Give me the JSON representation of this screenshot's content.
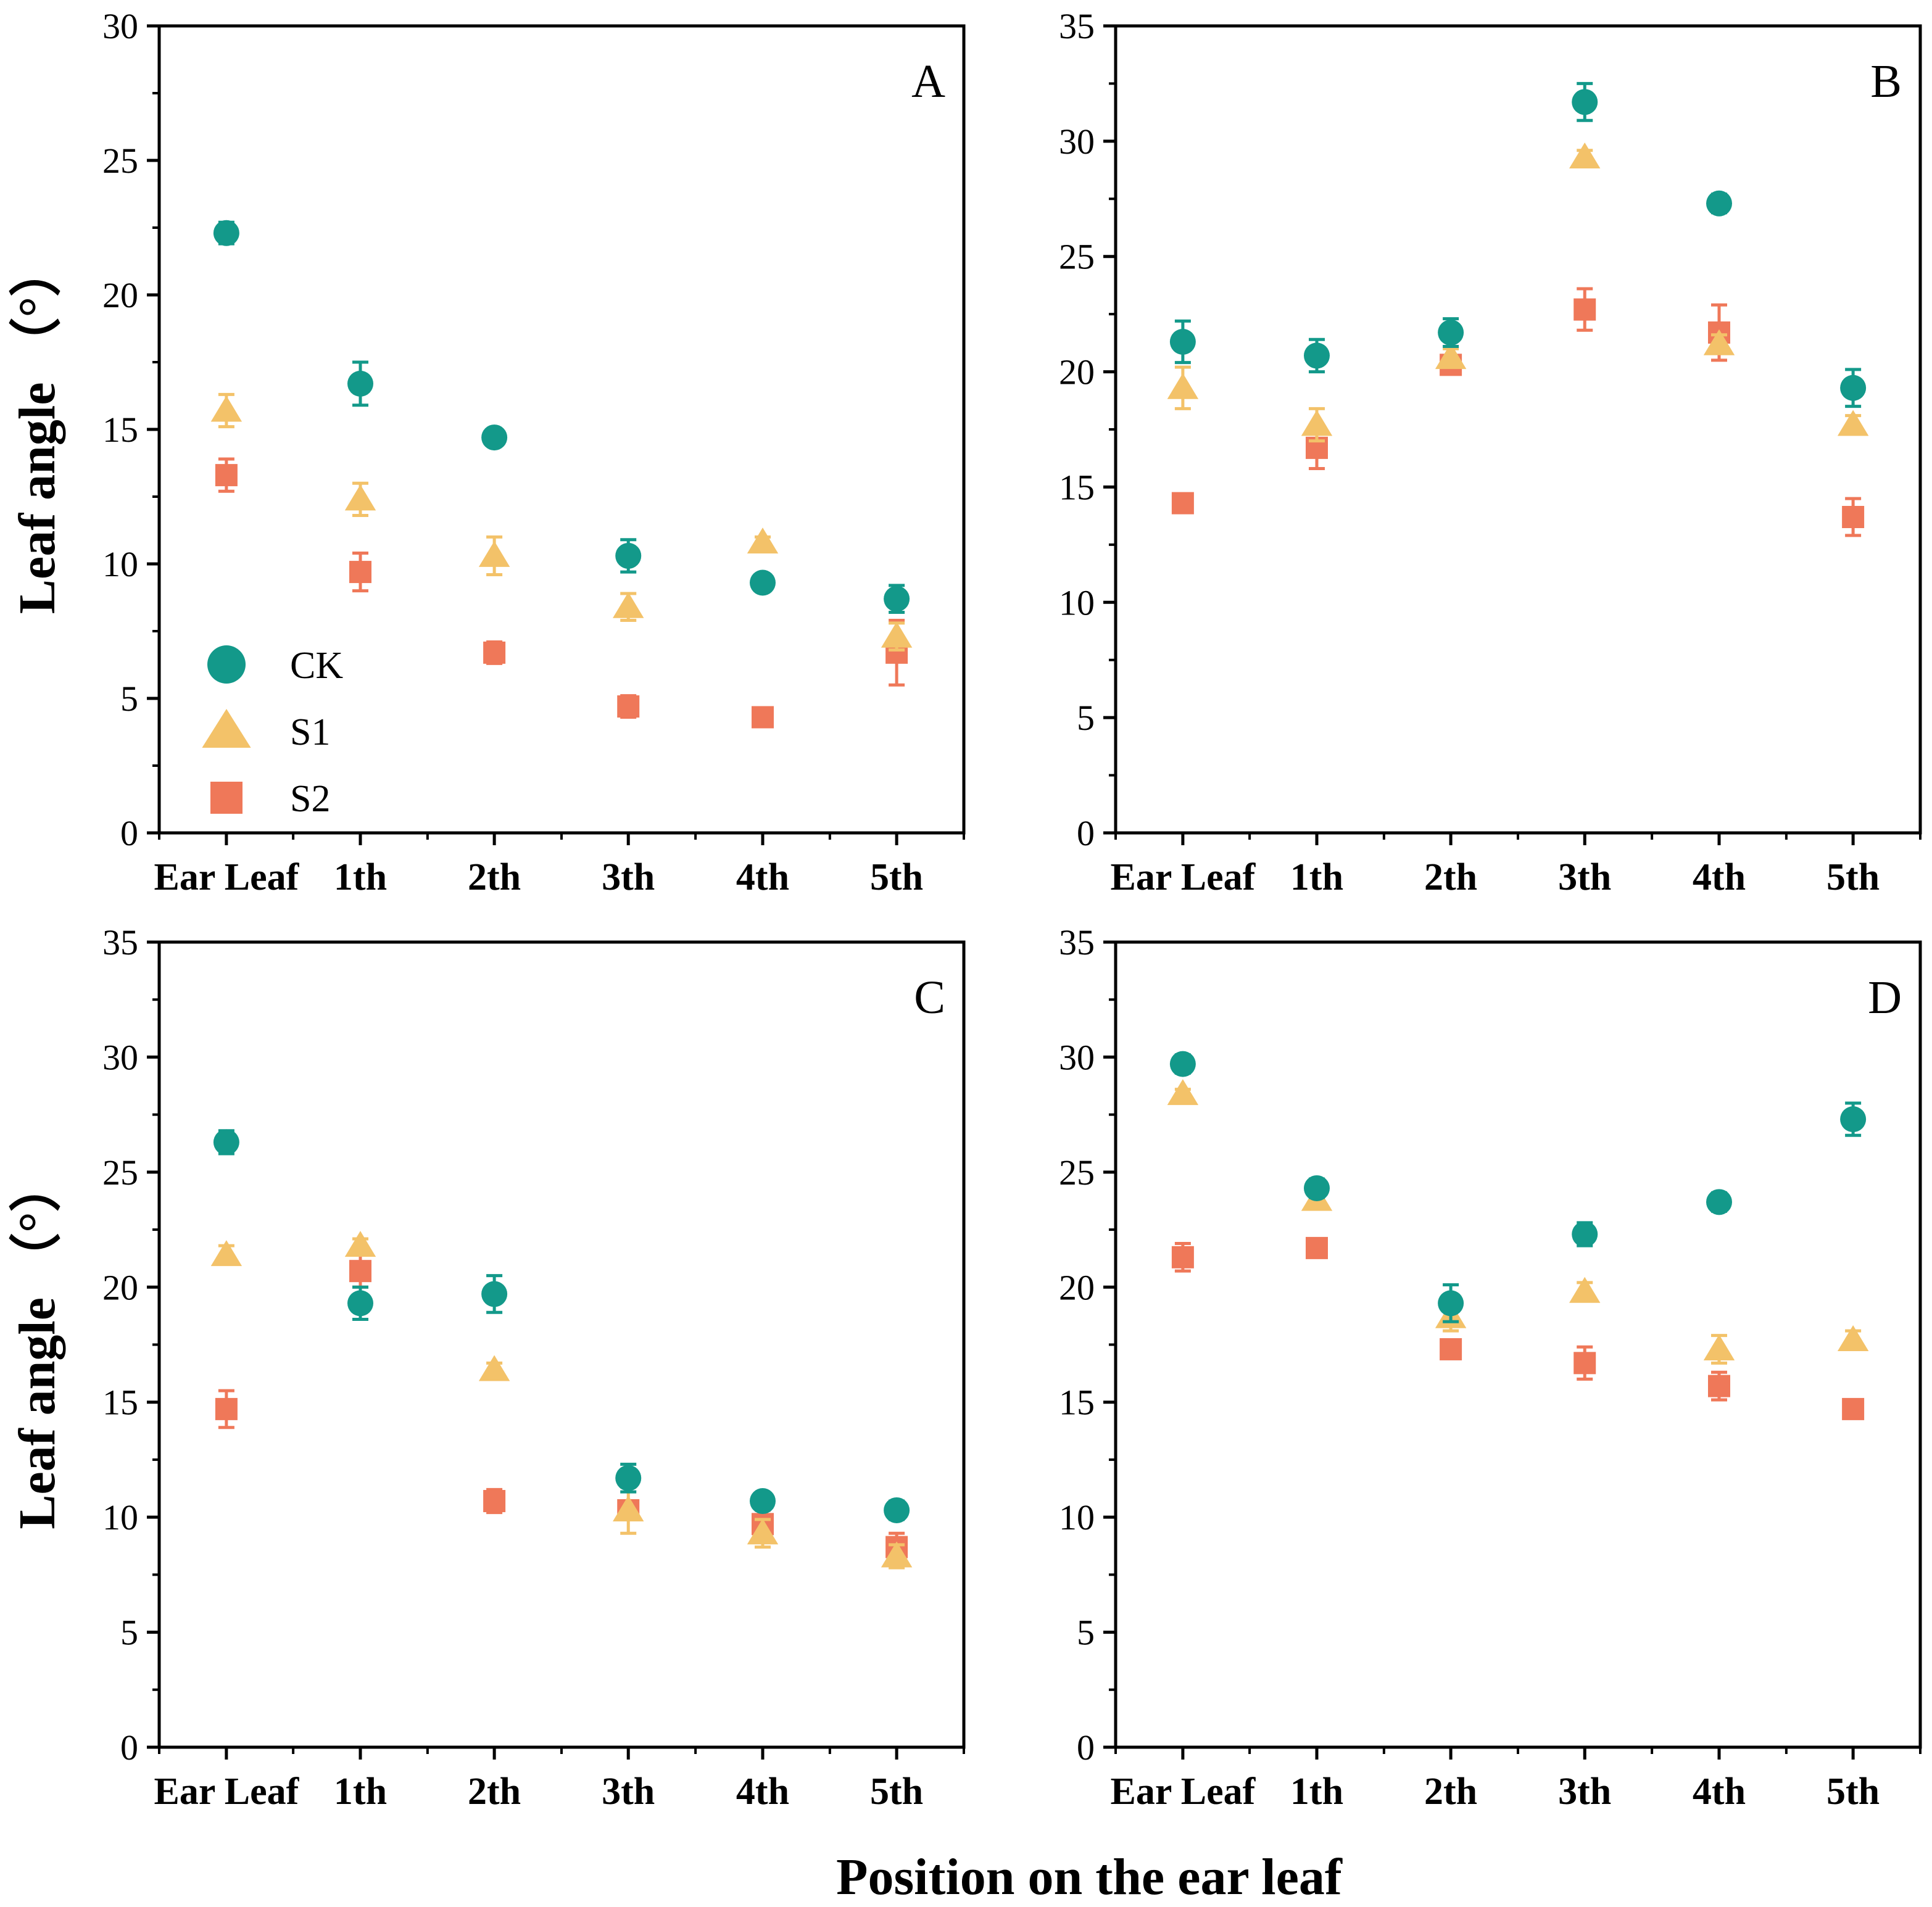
{
  "figure": {
    "ylabel": "Leaf angle （°）",
    "xlabel": "Position on the ear leaf",
    "colors": {
      "CK": "#13998a",
      "S1": "#f3c269",
      "S2": "#ef7859"
    }
  },
  "legend": [
    {
      "name": "CK",
      "marker": "circle"
    },
    {
      "name": "S1",
      "marker": "triangle"
    },
    {
      "name": "S2",
      "marker": "square"
    }
  ],
  "chart_data": [
    {
      "type": "scatter",
      "panel": "A",
      "categories": [
        "Ear Leaf",
        "1th",
        "2th",
        "3th",
        "4th",
        "5th"
      ],
      "ylim": [
        0,
        30
      ],
      "yticks": [
        0,
        5,
        10,
        15,
        20,
        25,
        30
      ],
      "ylabel": "Leaf angle （°）",
      "series": [
        {
          "name": "CK",
          "values": [
            22.3,
            16.7,
            14.7,
            10.3,
            9.3,
            8.7
          ],
          "errors": [
            0.4,
            0.8,
            0.2,
            0.6,
            0.3,
            0.5
          ]
        },
        {
          "name": "S1",
          "values": [
            15.7,
            12.4,
            10.3,
            8.4,
            10.8,
            7.3
          ],
          "errors": [
            0.6,
            0.6,
            0.7,
            0.5,
            0.2,
            0.5
          ]
        },
        {
          "name": "S2",
          "values": [
            13.3,
            9.7,
            6.7,
            4.7,
            4.3,
            6.7
          ],
          "errors": [
            0.6,
            0.7,
            0.4,
            0.4,
            0.3,
            1.2
          ]
        }
      ]
    },
    {
      "type": "scatter",
      "panel": "B",
      "categories": [
        "Ear Leaf",
        "1th",
        "2th",
        "3th",
        "4th",
        "5th"
      ],
      "ylim": [
        0,
        35
      ],
      "yticks": [
        0,
        5,
        10,
        15,
        20,
        25,
        30,
        35
      ],
      "ylabel": "",
      "series": [
        {
          "name": "CK",
          "values": [
            21.3,
            20.7,
            21.7,
            31.7,
            27.3,
            19.3
          ],
          "errors": [
            0.9,
            0.7,
            0.6,
            0.8,
            0.4,
            0.8
          ]
        },
        {
          "name": "S1",
          "values": [
            19.3,
            17.7,
            20.6,
            29.3,
            21.2,
            17.7
          ],
          "errors": [
            0.9,
            0.7,
            0.4,
            0.3,
            0.4,
            0.4
          ]
        },
        {
          "name": "S2",
          "values": [
            14.3,
            16.7,
            20.3,
            22.7,
            21.7,
            13.7
          ],
          "errors": [
            0.3,
            0.9,
            0.3,
            0.9,
            1.2,
            0.8
          ]
        }
      ]
    },
    {
      "type": "scatter",
      "panel": "C",
      "categories": [
        "Ear Leaf",
        "1th",
        "2th",
        "3th",
        "4th",
        "5th"
      ],
      "ylim": [
        0,
        35
      ],
      "yticks": [
        0,
        5,
        10,
        15,
        20,
        25,
        30,
        35
      ],
      "ylabel": "Leaf angle （°）",
      "series": [
        {
          "name": "CK",
          "values": [
            26.3,
            19.3,
            19.7,
            11.7,
            10.7,
            10.3
          ],
          "errors": [
            0.5,
            0.7,
            0.8,
            0.6,
            0.3,
            0.4
          ]
        },
        {
          "name": "S1",
          "values": [
            21.4,
            21.8,
            16.4,
            10.3,
            9.3,
            8.3
          ],
          "errors": [
            0.4,
            0.3,
            0.3,
            1.0,
            0.6,
            0.5
          ]
        },
        {
          "name": "S2",
          "values": [
            14.7,
            20.7,
            10.7,
            10.3,
            9.7,
            8.7
          ],
          "errors": [
            0.8,
            0.7,
            0.5,
            0.4,
            0.6,
            0.6
          ]
        }
      ]
    },
    {
      "type": "scatter",
      "panel": "D",
      "categories": [
        "Ear Leaf",
        "1th",
        "2th",
        "3th",
        "4th",
        "5th"
      ],
      "ylim": [
        0,
        35
      ],
      "yticks": [
        0,
        5,
        10,
        15,
        20,
        25,
        30,
        35
      ],
      "ylabel": "",
      "series": [
        {
          "name": "CK",
          "values": [
            29.7,
            24.3,
            19.3,
            22.3,
            23.7,
            27.3
          ],
          "errors": [
            0.4,
            0.4,
            0.8,
            0.5,
            0.4,
            0.7
          ]
        },
        {
          "name": "S1",
          "values": [
            28.4,
            23.8,
            18.7,
            19.8,
            17.3,
            17.7
          ],
          "errors": [
            0.2,
            0.2,
            0.6,
            0.4,
            0.6,
            0.4
          ]
        },
        {
          "name": "S2",
          "values": [
            21.3,
            21.7,
            17.3,
            16.7,
            15.7,
            14.7
          ],
          "errors": [
            0.6,
            0.2,
            0.3,
            0.7,
            0.6,
            0.2
          ]
        }
      ]
    }
  ]
}
